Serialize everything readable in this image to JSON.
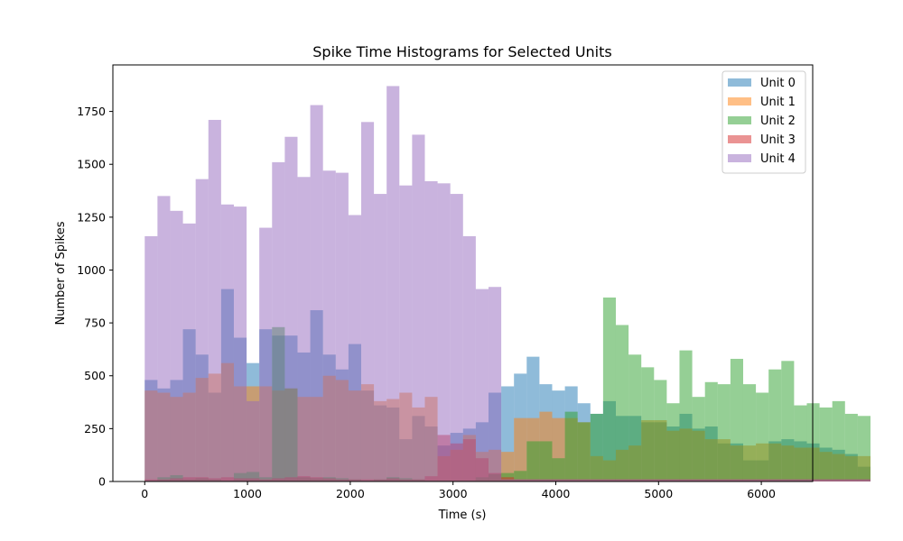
{
  "chart_data": {
    "type": "bar",
    "title": "Spike Time Histograms for Selected Units",
    "xlabel": "Time (s)",
    "ylabel": "Number of Spikes",
    "xlim": [
      -310,
      6500
    ],
    "ylim": [
      0,
      1970
    ],
    "xticks": [
      0,
      1000,
      2000,
      3000,
      4000,
      5000,
      6000
    ],
    "yticks": [
      0,
      250,
      500,
      750,
      1000,
      1250,
      1500,
      1750
    ],
    "grid": false,
    "legend_position": "top-right",
    "bin_start": 0,
    "bin_width": 123.9,
    "bar_alpha": 0.5,
    "series": [
      {
        "name": "Unit 0",
        "color": "#1f77b4",
        "values": [
          480,
          440,
          480,
          720,
          600,
          420,
          910,
          680,
          560,
          720,
          690,
          690,
          610,
          810,
          600,
          530,
          650,
          430,
          360,
          350,
          200,
          310,
          260,
          170,
          230,
          250,
          280,
          420,
          450,
          510,
          590,
          460,
          430,
          450,
          370,
          320,
          380,
          310,
          310,
          280,
          280,
          260,
          320,
          250,
          260,
          180,
          180,
          100,
          100,
          190,
          200,
          190,
          180,
          160,
          150,
          130,
          70
        ]
      },
      {
        "name": "Unit 1",
        "color": "#ff7f0e",
        "values": [
          430,
          420,
          400,
          420,
          490,
          510,
          560,
          450,
          450,
          450,
          430,
          440,
          400,
          400,
          500,
          480,
          430,
          460,
          380,
          390,
          420,
          350,
          400,
          120,
          150,
          220,
          140,
          150,
          140,
          300,
          300,
          330,
          300,
          300,
          280,
          120,
          100,
          150,
          170,
          290,
          290,
          240,
          250,
          240,
          200,
          200,
          170,
          170,
          180,
          180,
          170,
          160,
          160,
          140,
          130,
          120,
          120
        ]
      },
      {
        "name": "Unit 2",
        "color": "#2ca02c",
        "values": [
          5,
          20,
          30,
          10,
          15,
          10,
          5,
          40,
          45,
          20,
          730,
          440,
          20,
          15,
          20,
          15,
          10,
          5,
          10,
          20,
          15,
          10,
          5,
          5,
          5,
          5,
          20,
          35,
          40,
          50,
          190,
          190,
          110,
          330,
          280,
          320,
          870,
          740,
          600,
          540,
          480,
          370,
          620,
          400,
          470,
          460,
          580,
          460,
          420,
          530,
          570,
          360,
          370,
          350,
          380,
          320,
          310
        ]
      },
      {
        "name": "Unit 3",
        "color": "#d62728",
        "values": [
          10,
          10,
          15,
          20,
          20,
          15,
          20,
          15,
          15,
          10,
          15,
          20,
          25,
          20,
          15,
          10,
          10,
          10,
          10,
          15,
          10,
          10,
          25,
          220,
          180,
          200,
          110,
          40,
          20,
          10,
          10,
          10,
          10,
          10,
          10,
          10,
          10,
          10,
          10,
          10,
          10,
          10,
          10,
          10,
          10,
          10,
          10,
          10,
          10,
          10,
          10,
          10,
          10,
          10,
          10,
          10,
          10
        ]
      },
      {
        "name": "Unit 4",
        "color": "#9467bd",
        "values": [
          1160,
          1350,
          1280,
          1220,
          1430,
          1710,
          1310,
          1300,
          380,
          1200,
          1510,
          1630,
          1440,
          1780,
          1470,
          1460,
          1260,
          1700,
          1360,
          1870,
          1400,
          1640,
          1420,
          1410,
          1360,
          1160,
          910,
          920,
          10,
          10,
          10,
          10,
          10,
          10,
          10,
          10,
          10,
          10,
          10,
          10,
          10,
          10,
          10,
          10,
          10,
          10,
          10,
          10,
          10,
          10,
          10,
          10,
          10,
          10,
          10,
          10,
          10
        ]
      }
    ]
  }
}
